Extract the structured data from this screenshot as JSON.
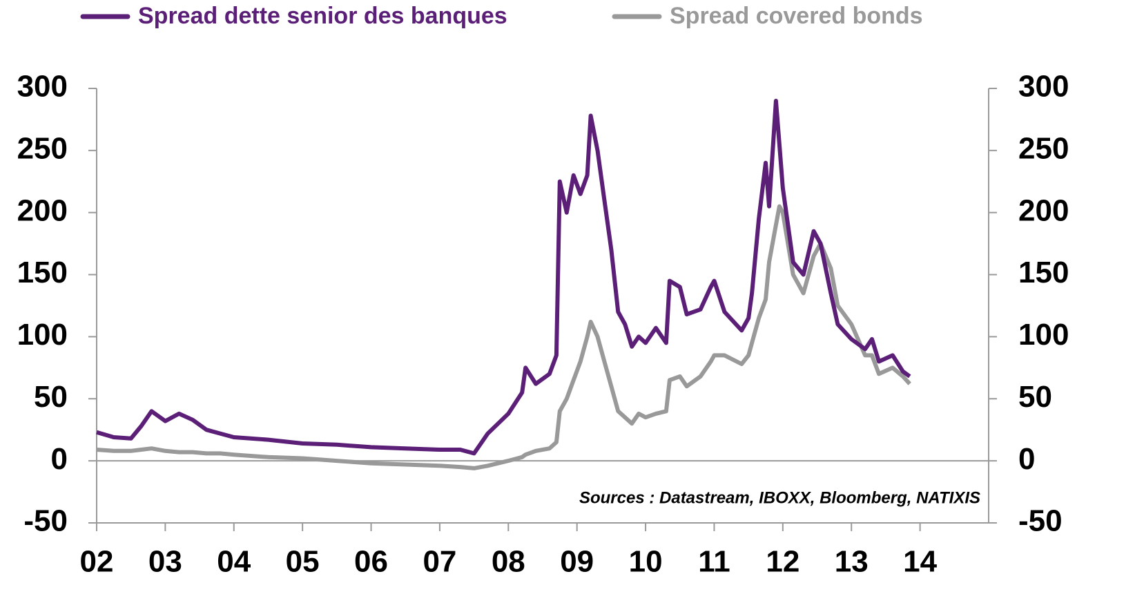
{
  "chart_data": {
    "type": "line",
    "annotation": "Sources : Datastream, IBOXX, Bloomberg, NATIXIS",
    "x": [
      2002.0,
      2002.25,
      2002.5,
      2002.65,
      2002.8,
      2003.0,
      2003.2,
      2003.4,
      2003.6,
      2003.8,
      2004.0,
      2004.5,
      2005.0,
      2005.5,
      2006.0,
      2006.5,
      2007.0,
      2007.3,
      2007.5,
      2007.7,
      2008.0,
      2008.2,
      2008.25,
      2008.4,
      2008.6,
      2008.7,
      2008.75,
      2008.85,
      2008.95,
      2009.05,
      2009.15,
      2009.2,
      2009.3,
      2009.4,
      2009.5,
      2009.6,
      2009.7,
      2009.8,
      2009.9,
      2010.0,
      2010.15,
      2010.3,
      2010.35,
      2010.5,
      2010.6,
      2010.8,
      2010.95,
      2011.0,
      2011.15,
      2011.4,
      2011.5,
      2011.55,
      2011.65,
      2011.75,
      2011.8,
      2011.9,
      2011.95,
      2012.0,
      2012.15,
      2012.3,
      2012.45,
      2012.55,
      2012.7,
      2012.8,
      2013.0,
      2013.2,
      2013.3,
      2013.4,
      2013.6,
      2013.75,
      2013.85
    ],
    "series": [
      {
        "name": "Spread dette senior des banques",
        "color": "#5b1f78",
        "values": [
          23,
          19,
          18,
          28,
          40,
          32,
          38,
          33,
          25,
          22,
          19,
          17,
          14,
          13,
          11,
          10,
          9,
          9,
          6,
          22,
          38,
          55,
          75,
          62,
          70,
          85,
          225,
          200,
          230,
          215,
          230,
          278,
          250,
          210,
          170,
          120,
          110,
          92,
          100,
          95,
          107,
          95,
          145,
          140,
          118,
          122,
          140,
          145,
          120,
          105,
          115,
          135,
          195,
          240,
          205,
          290,
          255,
          220,
          160,
          150,
          185,
          175,
          135,
          110,
          98,
          90,
          98,
          80,
          85,
          72,
          68
        ]
      },
      {
        "name": "Spread covered bonds",
        "color": "#999999",
        "axis": "y2",
        "values": [
          9,
          8,
          8,
          9,
          10,
          8,
          7,
          7,
          6,
          6,
          5,
          3,
          2,
          0,
          -2,
          -3,
          -4,
          -5,
          -6,
          -4,
          0,
          3,
          5,
          8,
          10,
          15,
          40,
          50,
          65,
          80,
          100,
          112,
          100,
          80,
          60,
          40,
          35,
          30,
          38,
          35,
          38,
          40,
          65,
          68,
          60,
          68,
          80,
          85,
          85,
          78,
          85,
          95,
          115,
          130,
          160,
          190,
          205,
          200,
          150,
          135,
          165,
          175,
          155,
          125,
          110,
          85,
          85,
          70,
          75,
          68,
          62
        ]
      }
    ],
    "xlim": [
      2002,
      2015
    ],
    "xticks": [
      {
        "value": 2002,
        "label": "02"
      },
      {
        "value": 2003,
        "label": "03"
      },
      {
        "value": 2004,
        "label": "04"
      },
      {
        "value": 2005,
        "label": "05"
      },
      {
        "value": 2006,
        "label": "06"
      },
      {
        "value": 2007,
        "label": "07"
      },
      {
        "value": 2008,
        "label": "08"
      },
      {
        "value": 2009,
        "label": "09"
      },
      {
        "value": 2010,
        "label": "10"
      },
      {
        "value": 2011,
        "label": "11"
      },
      {
        "value": 2012,
        "label": "12"
      },
      {
        "value": 2013,
        "label": "13"
      },
      {
        "value": 2014,
        "label": "14"
      }
    ],
    "ylim": [
      -50,
      300
    ],
    "yticks": [
      -50,
      0,
      50,
      100,
      150,
      200,
      250,
      300
    ],
    "y2lim": [
      -50,
      300
    ],
    "y2ticks": [
      -50,
      0,
      50,
      100,
      150,
      200,
      250,
      300
    ],
    "legend": "top"
  }
}
